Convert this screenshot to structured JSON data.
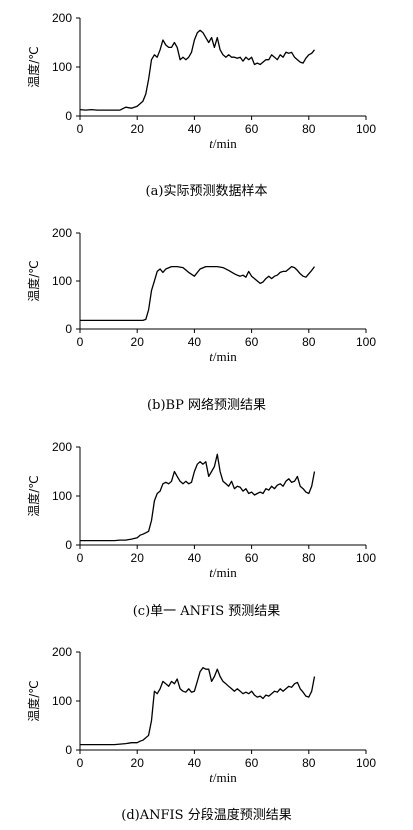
{
  "chart_data": [
    {
      "type": "line",
      "caption": "(a)实际预测数据样本",
      "xlabel": "t/min",
      "ylabel": "温度/℃",
      "xlim": [
        0,
        100
      ],
      "ylim": [
        0,
        200
      ],
      "xticks": [
        "0",
        "20",
        "40",
        "60",
        "80",
        "100"
      ],
      "yticks": [
        "0",
        "100",
        "200"
      ],
      "x": [
        0,
        2,
        4,
        6,
        8,
        10,
        12,
        14,
        16,
        18,
        20,
        22,
        23,
        24,
        25,
        26,
        27,
        28,
        29,
        30,
        31,
        32,
        33,
        34,
        35,
        36,
        37,
        38,
        39,
        40,
        41,
        42,
        43,
        44,
        45,
        46,
        47,
        48,
        49,
        50,
        51,
        52,
        53,
        54,
        55,
        56,
        57,
        58,
        59,
        60,
        61,
        62,
        63,
        64,
        65,
        66,
        67,
        68,
        69,
        70,
        71,
        72,
        73,
        74,
        75,
        76,
        77,
        78,
        79,
        80,
        81,
        82
      ],
      "y": [
        13,
        12,
        13,
        12,
        12,
        12,
        12,
        12,
        18,
        16,
        20,
        30,
        45,
        75,
        115,
        125,
        120,
        135,
        155,
        145,
        140,
        140,
        150,
        140,
        115,
        120,
        115,
        120,
        130,
        155,
        170,
        175,
        170,
        160,
        150,
        160,
        140,
        160,
        135,
        125,
        120,
        125,
        120,
        120,
        118,
        120,
        112,
        120,
        115,
        120,
        105,
        108,
        105,
        110,
        115,
        115,
        125,
        120,
        115,
        125,
        120,
        130,
        128,
        130,
        120,
        115,
        110,
        108,
        118,
        125,
        128,
        135
      ]
    },
    {
      "type": "line",
      "caption": "(b)BP 网络预测结果",
      "xlabel": "t/min",
      "ylabel": "温度/℃",
      "xlim": [
        0,
        100
      ],
      "ylim": [
        0,
        200
      ],
      "xticks": [
        "0",
        "20",
        "40",
        "60",
        "80",
        "100"
      ],
      "yticks": [
        "0",
        "100",
        "200"
      ],
      "x": [
        0,
        5,
        10,
        15,
        20,
        22,
        23,
        24,
        25,
        26,
        27,
        28,
        29,
        30,
        32,
        34,
        36,
        38,
        40,
        42,
        44,
        46,
        48,
        50,
        52,
        54,
        55,
        56,
        57,
        58,
        59,
        60,
        61,
        62,
        63,
        64,
        65,
        66,
        67,
        68,
        69,
        70,
        71,
        72,
        73,
        74,
        75,
        76,
        77,
        78,
        79,
        80,
        81,
        82
      ],
      "y": [
        18,
        18,
        18,
        18,
        18,
        18,
        20,
        40,
        80,
        100,
        120,
        125,
        118,
        125,
        130,
        130,
        128,
        118,
        110,
        125,
        130,
        130,
        130,
        128,
        122,
        115,
        112,
        110,
        112,
        108,
        120,
        110,
        105,
        100,
        95,
        98,
        105,
        110,
        105,
        110,
        112,
        118,
        120,
        120,
        125,
        130,
        128,
        122,
        115,
        110,
        108,
        115,
        122,
        130
      ]
    },
    {
      "type": "line",
      "caption": "(c)单一 ANFIS 预测结果",
      "xlabel": "t/min",
      "ylabel": "温度/℃",
      "xlim": [
        0,
        100
      ],
      "ylim": [
        0,
        200
      ],
      "xticks": [
        "0",
        "20",
        "40",
        "60",
        "80",
        "100"
      ],
      "yticks": [
        "0",
        "100",
        "200"
      ],
      "x": [
        0,
        2,
        4,
        6,
        8,
        10,
        12,
        14,
        16,
        18,
        20,
        21,
        22,
        23,
        24,
        25,
        26,
        27,
        28,
        29,
        30,
        31,
        32,
        33,
        34,
        35,
        36,
        37,
        38,
        39,
        40,
        41,
        42,
        43,
        44,
        45,
        46,
        47,
        48,
        49,
        50,
        51,
        52,
        53,
        54,
        55,
        56,
        57,
        58,
        59,
        60,
        61,
        62,
        63,
        64,
        65,
        66,
        67,
        68,
        69,
        70,
        71,
        72,
        73,
        74,
        75,
        76,
        77,
        78,
        79,
        80,
        81,
        82
      ],
      "y": [
        9,
        9,
        9,
        9,
        9,
        9,
        9,
        10,
        10,
        12,
        15,
        20,
        22,
        25,
        28,
        50,
        90,
        105,
        110,
        125,
        128,
        125,
        130,
        150,
        140,
        130,
        125,
        130,
        125,
        128,
        150,
        165,
        170,
        165,
        170,
        140,
        150,
        160,
        185,
        150,
        130,
        125,
        120,
        130,
        115,
        120,
        118,
        110,
        115,
        105,
        108,
        102,
        105,
        108,
        105,
        115,
        112,
        120,
        115,
        122,
        125,
        120,
        130,
        135,
        128,
        130,
        140,
        120,
        115,
        108,
        105,
        120,
        150
      ]
    },
    {
      "type": "line",
      "caption": "(d)ANFIS 分段温度预测结果",
      "xlabel": "t/min",
      "ylabel": "温度/℃",
      "xlim": [
        0,
        100
      ],
      "ylim": [
        0,
        200
      ],
      "xticks": [
        "0",
        "20",
        "40",
        "60",
        "80",
        "100"
      ],
      "yticks": [
        "0",
        "100",
        "200"
      ],
      "x": [
        0,
        2,
        4,
        6,
        8,
        10,
        12,
        14,
        16,
        18,
        20,
        21,
        22,
        23,
        24,
        25,
        26,
        27,
        28,
        29,
        30,
        31,
        32,
        33,
        34,
        35,
        36,
        37,
        38,
        39,
        40,
        41,
        42,
        43,
        44,
        45,
        46,
        47,
        48,
        49,
        50,
        51,
        52,
        53,
        54,
        55,
        56,
        57,
        58,
        59,
        60,
        61,
        62,
        63,
        64,
        65,
        66,
        67,
        68,
        69,
        70,
        71,
        72,
        73,
        74,
        75,
        76,
        77,
        78,
        79,
        80,
        81,
        82
      ],
      "y": [
        11,
        11,
        11,
        11,
        11,
        11,
        11,
        12,
        13,
        15,
        15,
        18,
        20,
        25,
        30,
        60,
        120,
        115,
        125,
        140,
        135,
        130,
        140,
        135,
        145,
        125,
        120,
        118,
        125,
        118,
        120,
        140,
        160,
        168,
        165,
        165,
        140,
        150,
        165,
        150,
        140,
        135,
        130,
        125,
        120,
        125,
        120,
        115,
        118,
        115,
        120,
        112,
        108,
        110,
        105,
        112,
        110,
        115,
        120,
        118,
        125,
        120,
        125,
        130,
        128,
        135,
        138,
        125,
        118,
        110,
        108,
        120,
        150
      ]
    }
  ]
}
